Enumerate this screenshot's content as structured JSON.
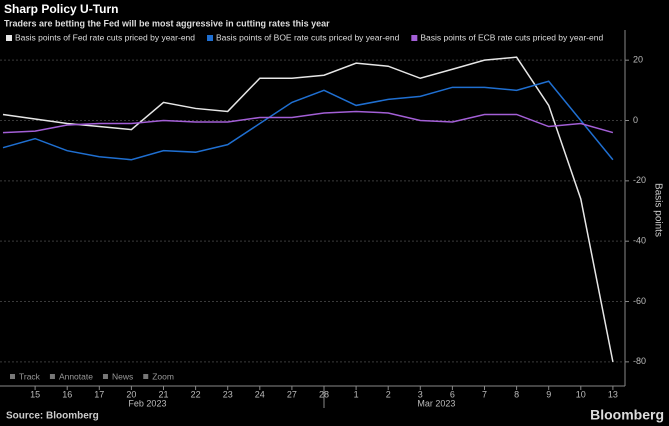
{
  "chart_data": {
    "type": "line",
    "title": "Sharp Policy U-Turn",
    "subtitle": "Traders are betting the Fed will be most aggressive in cutting rates this year",
    "y_axis_label": "Basis points",
    "categories": [
      null,
      "15",
      "16",
      "17",
      "20",
      "21",
      "22",
      "23",
      "24",
      "27",
      "28",
      "1",
      "2",
      "3",
      "6",
      "7",
      "8",
      "9",
      "10",
      "13"
    ],
    "month_labels": [
      {
        "label": "Feb 2023",
        "at": 5
      },
      {
        "label": "Mar 2023",
        "at": 14
      }
    ],
    "series": [
      {
        "name": "Basis points of Fed rate cuts priced by year-end",
        "color": "#e6e6e6",
        "values": [
          2,
          0.5,
          -1,
          -2,
          -3,
          6,
          4,
          3,
          14,
          14,
          15,
          19,
          18,
          14,
          17,
          20,
          21,
          5,
          -26,
          -80
        ]
      },
      {
        "name": "Basis points of BOE rate cuts priced by year-end",
        "color": "#1f6fd1",
        "values": [
          -9,
          -6,
          -10,
          -12,
          -13,
          -10,
          -10.5,
          -8,
          -1,
          6,
          10,
          5,
          7,
          8,
          11,
          11,
          10,
          13,
          0,
          -13
        ]
      },
      {
        "name": "Basis points of ECB rate cuts priced by year-end",
        "color": "#a35fd6",
        "values": [
          -4,
          -3.5,
          -1.5,
          -1,
          -1,
          0,
          -0.5,
          -0.5,
          1,
          1,
          2.5,
          3,
          2.5,
          0,
          -0.5,
          2,
          2,
          -2,
          -1,
          -4
        ]
      }
    ],
    "ylim": [
      -88,
      30
    ],
    "yticks": [
      20,
      0,
      -20,
      -40,
      -60,
      -80
    ],
    "grid": true,
    "toolbar": [
      "Track",
      "Annotate",
      "News",
      "Zoom"
    ],
    "source": "Source: Bloomberg",
    "brand": "Bloomberg"
  }
}
